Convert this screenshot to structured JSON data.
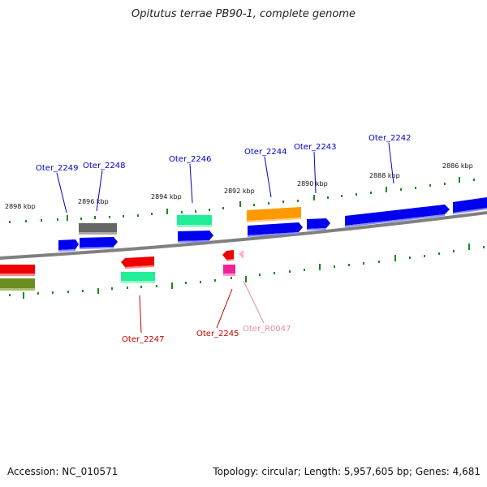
{
  "title": "Opitutus terrae PB90-1, complete genome",
  "footer": {
    "accession": "Accession: NC_010571",
    "summary": "Topology: circular; Length: 5,957,605 bp; Genes: 4,681"
  },
  "kbp_labels": [
    "2898 kbp",
    "2896 kbp",
    "2894 kbp",
    "2892 kbp",
    "2890 kbp",
    "2888 kbp",
    "2886 kbp"
  ],
  "gene_labels": [
    {
      "name": "Oter_2249",
      "color": "#0000cc"
    },
    {
      "name": "Oter_2248",
      "color": "#0000cc"
    },
    {
      "name": "Oter_2246",
      "color": "#0000cc"
    },
    {
      "name": "Oter_2244",
      "color": "#0000cc"
    },
    {
      "name": "Oter_2243",
      "color": "#0000cc"
    },
    {
      "name": "Oter_2242",
      "color": "#0000cc"
    },
    {
      "name": "Oter_2247",
      "color": "#cc0000"
    },
    {
      "name": "Oter_2245",
      "color": "#cc0000"
    },
    {
      "name": "Oter_R0047",
      "color": "#ee88aa"
    }
  ],
  "colors": {
    "backbone": "#808080",
    "tick": "#1a8a1a",
    "blue": "#0000ee",
    "red": "#ee0000",
    "green": "#22ee99",
    "gray": "#666666",
    "orange": "#ff9900",
    "olive": "#6b8e23",
    "magenta": "#ee2299",
    "pink": "#ffaacc"
  }
}
